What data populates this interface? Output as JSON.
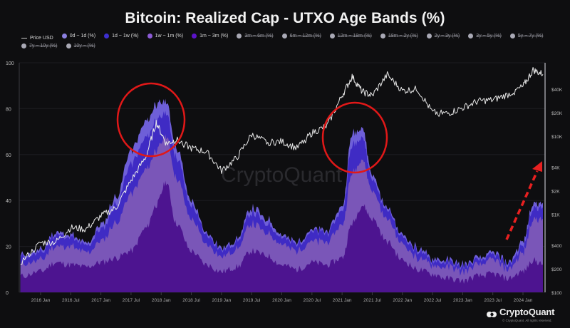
{
  "title": "Bitcoin: Realized Cap - UTXO Age Bands (%)",
  "legend": [
    {
      "label": "Price USD",
      "type": "line",
      "color": "#cfcfcf",
      "active": true
    },
    {
      "label": "0d ~ 1d (%)",
      "type": "dot",
      "color": "#8b7fe0",
      "active": true
    },
    {
      "label": "1d ~ 1w (%)",
      "type": "dot",
      "color": "#3d2fd0",
      "active": true
    },
    {
      "label": "1w ~ 1m (%)",
      "type": "dot",
      "color": "#8c5bd6",
      "active": true
    },
    {
      "label": "1m ~ 3m (%)",
      "type": "dot",
      "color": "#5b12c9",
      "active": true
    },
    {
      "label": "3m ~ 6m (%)",
      "type": "dot",
      "color": "#a9a9b5",
      "active": false
    },
    {
      "label": "6m ~ 12m (%)",
      "type": "dot",
      "color": "#a9a9b5",
      "active": false
    },
    {
      "label": "12m ~ 18m (%)",
      "type": "dot",
      "color": "#a9a9b5",
      "active": false
    },
    {
      "label": "18m ~ 2y (%)",
      "type": "dot",
      "color": "#a9a9b5",
      "active": false
    },
    {
      "label": "2y ~ 3y (%)",
      "type": "dot",
      "color": "#a9a9b5",
      "active": false
    },
    {
      "label": "3y ~ 5y (%)",
      "type": "dot",
      "color": "#a9a9b5",
      "active": false
    },
    {
      "label": "5y ~ 7y (%)",
      "type": "dot",
      "color": "#a9a9b5",
      "active": false
    },
    {
      "label": "7y ~ 10y (%)",
      "type": "dot",
      "color": "#a9a9b5",
      "active": false
    },
    {
      "label": "10y ~ (%)",
      "type": "dot",
      "color": "#a9a9b5",
      "active": false
    }
  ],
  "watermark": "CryptoQuant",
  "brand": {
    "name": "CryptoQuant",
    "copyright": "© CryptoQuant. All rights reserved."
  },
  "annotations": {
    "circles": [
      {
        "label": "2017-2018 peak",
        "color": "#e01818"
      },
      {
        "label": "2021 peak",
        "color": "#e01818"
      }
    ],
    "arrow": {
      "label": "rising trend 2023-2024",
      "color": "#e82020"
    }
  },
  "colors": {
    "background": "#0e0e10",
    "band_0d_1d": "#6e5fd8",
    "band_1d_1w": "#3f2bc4",
    "band_1w_1m": "#7a56b8",
    "band_1m_3m": "#4d1490",
    "price_line": "#e8e8e8"
  },
  "chart_data": {
    "type": "area",
    "title": "Bitcoin: Realized Cap - UTXO Age Bands (%)",
    "xlabel": "",
    "ylabel_left": "%",
    "ylabel_right": "Price USD (log)",
    "ylim": [
      0,
      100
    ],
    "y2lim": [
      100,
      100000
    ],
    "y_ticks": [
      "0",
      "20",
      "40",
      "60",
      "80",
      "100"
    ],
    "y2_ticks": [
      "$100",
      "$200",
      "$400",
      "$1K",
      "$2K",
      "$4K",
      "$10K",
      "$20K",
      "$40K"
    ],
    "x_ticks": [
      "2016 Jan",
      "2016 Jul",
      "2017 Jan",
      "2017 Jul",
      "2018 Jan",
      "2018 Jul",
      "2019 Jan",
      "2019 Jul",
      "2020 Jan",
      "2020 Jul",
      "2021 Jan",
      "2021 Jul",
      "2022 Jan",
      "2022 Jul",
      "2023 Jan",
      "2023 Jul",
      "2024 Jan"
    ],
    "grid": true,
    "legend_position": "top",
    "stacked": true,
    "x": [
      "2015-09",
      "2016-01",
      "2016-04",
      "2016-07",
      "2016-10",
      "2017-01",
      "2017-04",
      "2017-07",
      "2017-10",
      "2017-12",
      "2018-02",
      "2018-04",
      "2018-07",
      "2018-10",
      "2019-01",
      "2019-04",
      "2019-07",
      "2019-10",
      "2020-01",
      "2020-04",
      "2020-07",
      "2020-10",
      "2021-01",
      "2021-03",
      "2021-05",
      "2021-07",
      "2021-10",
      "2022-01",
      "2022-04",
      "2022-07",
      "2022-10",
      "2023-01",
      "2023-04",
      "2023-07",
      "2023-10",
      "2024-01",
      "2024-03",
      "2024-05"
    ],
    "series": [
      {
        "name": "1m ~ 3m (%)",
        "values": [
          7,
          9,
          13,
          12,
          11,
          13,
          15,
          18,
          28,
          38,
          48,
          30,
          18,
          12,
          9,
          11,
          18,
          16,
          12,
          10,
          13,
          12,
          15,
          30,
          38,
          32,
          22,
          14,
          10,
          8,
          6,
          5,
          7,
          8,
          6,
          9,
          14,
          12
        ]
      },
      {
        "name": "1w ~ 1m (%)",
        "values": [
          5,
          5,
          7,
          8,
          6,
          9,
          15,
          25,
          25,
          24,
          20,
          20,
          14,
          9,
          7,
          8,
          12,
          10,
          9,
          8,
          9,
          10,
          14,
          22,
          20,
          12,
          10,
          7,
          5,
          4,
          5,
          4,
          5,
          6,
          4,
          8,
          18,
          20
        ]
      },
      {
        "name": "1d ~ 1w (%)",
        "values": [
          3,
          3,
          5,
          4,
          3,
          5,
          8,
          13,
          14,
          13,
          10,
          9,
          6,
          4,
          3,
          3,
          5,
          4,
          3,
          3,
          4,
          4,
          6,
          12,
          10,
          5,
          4,
          3,
          3,
          2,
          2,
          2,
          2,
          2,
          2,
          3,
          5,
          5
        ]
      },
      {
        "name": "0d ~ 1d (%)",
        "values": [
          1,
          1,
          1,
          1,
          1,
          2,
          3,
          6,
          7,
          7,
          5,
          4,
          2,
          1,
          1,
          1,
          2,
          2,
          1,
          1,
          1,
          1,
          2,
          5,
          4,
          2,
          1,
          1,
          1,
          1,
          1,
          1,
          1,
          1,
          1,
          2,
          2,
          2
        ]
      },
      {
        "name": "Price USD",
        "axis": "right",
        "values": [
          240,
          430,
          440,
          670,
          640,
          950,
          1200,
          2700,
          5500,
          15000,
          8000,
          9000,
          7000,
          6300,
          3600,
          5200,
          10500,
          8300,
          8500,
          7000,
          11000,
          13500,
          33000,
          58000,
          37000,
          33000,
          61000,
          38000,
          40000,
          20000,
          19500,
          23000,
          28000,
          29000,
          34000,
          43000,
          70000,
          62000
        ]
      }
    ]
  },
  "axes": {
    "y_left": [
      "100",
      "80",
      "60",
      "40",
      "20",
      "0"
    ],
    "y_right": [
      "$40K",
      "$20K",
      "$10K",
      "$4K",
      "$2K",
      "$1K",
      "$400",
      "$200",
      "$100"
    ],
    "x": [
      "2016 Jan",
      "2016 Jul",
      "2017 Jan",
      "2017 Jul",
      "2018 Jan",
      "2018 Jul",
      "2019 Jan",
      "2019 Jul",
      "2020 Jan",
      "2020 Jul",
      "2021 Jan",
      "2021 Jul",
      "2022 Jan",
      "2022 Jul",
      "2023 Jan",
      "2023 Jul",
      "2024 Jan"
    ]
  }
}
